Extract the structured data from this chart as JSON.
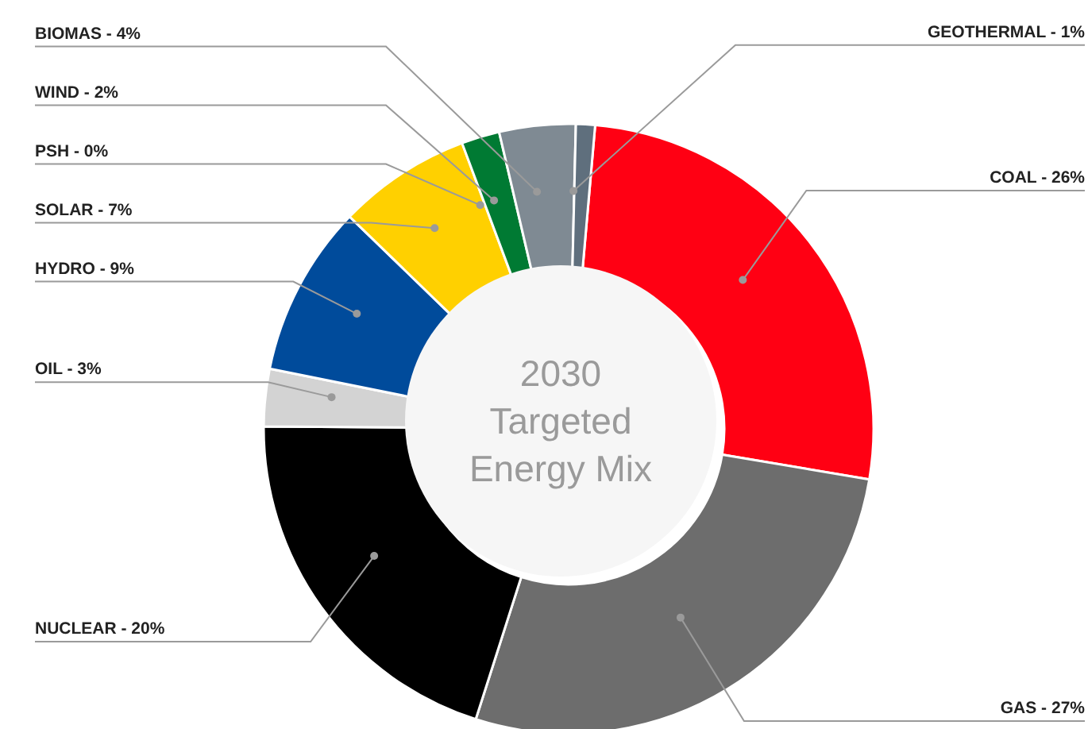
{
  "chart_data": {
    "type": "donut",
    "title": "2030 Targeted Energy Mix",
    "categories": [
      "COAL - 26%",
      "GAS - 27%",
      "NUCLEAR - 20%",
      "OIL - 3%",
      "HYDRO - 9%",
      "SOLAR - 7%",
      "PSH - 0%",
      "WIND - 2%",
      "BIOMAS - 4%",
      "GEOTHERMAL - 1%"
    ],
    "values": [
      26,
      27,
      20,
      3,
      9,
      7,
      0,
      2,
      4,
      1
    ],
    "colors": [
      "#ff0013",
      "#6d6d6d",
      "#000000",
      "#d3d3d3",
      "#004b9b",
      "#ffd000",
      "#6b6b6b",
      "#007a33",
      "#7f8a93",
      "#5f6f7d"
    ]
  }
}
